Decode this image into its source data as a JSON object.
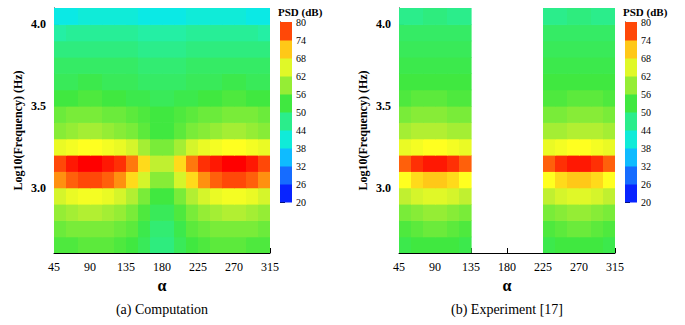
{
  "chart_data": [
    {
      "type": "heatmap",
      "title": "(a) Computation",
      "x_label": "α",
      "y_label": "Log10(Frequency) (Hz)",
      "x": [
        52.5,
        67.5,
        82.5,
        97.5,
        112.5,
        127.5,
        142.5,
        157.5,
        172.5,
        187.5,
        202.5,
        217.5,
        232.5,
        247.5,
        262.5,
        277.5,
        292.5,
        307.5
      ],
      "y": [
        2.65,
        2.75,
        2.85,
        2.95,
        3.05,
        3.15,
        3.25,
        3.35,
        3.45,
        3.55,
        3.65,
        3.75,
        3.85,
        3.95,
        4.05
      ],
      "values": [
        [
          54,
          54,
          55,
          55,
          55,
          54,
          53,
          51,
          48,
          48,
          51,
          53,
          54,
          55,
          55,
          55,
          54,
          54
        ],
        [
          56,
          57,
          57,
          57,
          57,
          56,
          55,
          52,
          49,
          49,
          52,
          55,
          56,
          57,
          57,
          57,
          57,
          56
        ],
        [
          59,
          60,
          61,
          61,
          60,
          59,
          57,
          54,
          51,
          51,
          54,
          57,
          59,
          60,
          61,
          61,
          60,
          59
        ],
        [
          64,
          66,
          67,
          67,
          66,
          64,
          61,
          57,
          53,
          53,
          57,
          61,
          64,
          66,
          67,
          67,
          66,
          64
        ],
        [
          74,
          76,
          77,
          77,
          76,
          74,
          70,
          64,
          58,
          58,
          64,
          70,
          74,
          76,
          77,
          77,
          76,
          74
        ],
        [
          77,
          79,
          80,
          80,
          79,
          78,
          75,
          70,
          62,
          62,
          70,
          75,
          78,
          79,
          80,
          80,
          79,
          77
        ],
        [
          66,
          67,
          68,
          68,
          67,
          66,
          64,
          60,
          57,
          57,
          60,
          64,
          66,
          67,
          68,
          68,
          67,
          66
        ],
        [
          58,
          59,
          60,
          60,
          59,
          58,
          57,
          55,
          53,
          53,
          55,
          57,
          58,
          59,
          60,
          60,
          59,
          58
        ],
        [
          56,
          57,
          57,
          57,
          56,
          56,
          55,
          54,
          53,
          53,
          54,
          55,
          56,
          56,
          57,
          57,
          57,
          56
        ],
        [
          53,
          53,
          54,
          54,
          53,
          53,
          52,
          52,
          51,
          51,
          52,
          52,
          53,
          53,
          54,
          54,
          53,
          53
        ],
        [
          51,
          51,
          52,
          52,
          51,
          51,
          51,
          50,
          50,
          50,
          50,
          51,
          51,
          51,
          52,
          52,
          51,
          51
        ],
        [
          50,
          50,
          50,
          50,
          50,
          50,
          50,
          49,
          49,
          49,
          49,
          50,
          50,
          50,
          50,
          50,
          50,
          50
        ],
        [
          48,
          48,
          48,
          48,
          48,
          48,
          48,
          47,
          47,
          47,
          47,
          48,
          48,
          48,
          48,
          48,
          48,
          48
        ],
        [
          45,
          46,
          46,
          46,
          46,
          46,
          46,
          45,
          45,
          45,
          45,
          46,
          46,
          46,
          46,
          46,
          46,
          45
        ],
        [
          40,
          40,
          41,
          41,
          41,
          41,
          41,
          40,
          40,
          40,
          40,
          41,
          41,
          41,
          41,
          41,
          40,
          40
        ]
      ],
      "xlim": [
        45,
        315
      ],
      "xticks": [
        45,
        90,
        135,
        180,
        225,
        270,
        315
      ],
      "ylim": [
        2.6,
        4.1
      ],
      "yticks": [
        {
          "value": 3,
          "label": "3.0"
        },
        {
          "value": 3.5,
          "label": "3.5"
        },
        {
          "value": 4,
          "label": "4.0"
        }
      ],
      "colorbar": {
        "label": "PSD (dB)",
        "range": [
          20,
          80
        ],
        "ticks": [
          20,
          26,
          32,
          38,
          44,
          50,
          56,
          62,
          68,
          74,
          80
        ]
      }
    },
    {
      "type": "heatmap",
      "title": "(b) Experiment [17]",
      "x_label": "α",
      "y_label": "Log10(Frequency) (Hz)",
      "x": [
        52.5,
        67.5,
        82.5,
        97.5,
        112.5,
        127.5,
        142.5,
        157.5,
        172.5,
        187.5,
        202.5,
        217.5,
        232.5,
        247.5,
        262.5,
        277.5,
        292.5,
        307.5
      ],
      "y": [
        2.65,
        2.75,
        2.85,
        2.95,
        3.05,
        3.15,
        3.25,
        3.35,
        3.45,
        3.55,
        3.65,
        3.75,
        3.85,
        3.95,
        4.05
      ],
      "values": [
        [
          52,
          53,
          53,
          53,
          53,
          52,
          null,
          null,
          null,
          null,
          null,
          null,
          52,
          53,
          53,
          53,
          53,
          52
        ],
        [
          54,
          55,
          56,
          56,
          55,
          54,
          null,
          null,
          null,
          null,
          null,
          null,
          54,
          55,
          56,
          56,
          55,
          54
        ],
        [
          57,
          58,
          59,
          59,
          58,
          57,
          null,
          null,
          null,
          null,
          null,
          null,
          57,
          58,
          59,
          59,
          58,
          57
        ],
        [
          62,
          64,
          65,
          65,
          64,
          62,
          null,
          null,
          null,
          null,
          null,
          null,
          62,
          64,
          65,
          65,
          64,
          62
        ],
        [
          68,
          70,
          71,
          71,
          70,
          68,
          null,
          null,
          null,
          null,
          null,
          null,
          68,
          70,
          71,
          71,
          70,
          68
        ],
        [
          76,
          78,
          79,
          79,
          78,
          76,
          null,
          null,
          null,
          null,
          null,
          null,
          76,
          78,
          79,
          79,
          78,
          76
        ],
        [
          66,
          67,
          68,
          68,
          67,
          66,
          null,
          null,
          null,
          null,
          null,
          null,
          66,
          67,
          68,
          68,
          67,
          66
        ],
        [
          60,
          61,
          61,
          61,
          60,
          60,
          null,
          null,
          null,
          null,
          null,
          null,
          60,
          60,
          61,
          61,
          61,
          60
        ],
        [
          57,
          58,
          58,
          58,
          57,
          57,
          null,
          null,
          null,
          null,
          null,
          null,
          57,
          57,
          58,
          58,
          58,
          57
        ],
        [
          54,
          55,
          55,
          55,
          54,
          54,
          null,
          null,
          null,
          null,
          null,
          null,
          54,
          54,
          55,
          55,
          55,
          54
        ],
        [
          53,
          53,
          53,
          53,
          53,
          53,
          null,
          null,
          null,
          null,
          null,
          null,
          53,
          53,
          53,
          53,
          53,
          53
        ],
        [
          52,
          52,
          52,
          52,
          52,
          52,
          null,
          null,
          null,
          null,
          null,
          null,
          52,
          52,
          52,
          52,
          52,
          52
        ],
        [
          51,
          51,
          51,
          51,
          51,
          51,
          null,
          null,
          null,
          null,
          null,
          null,
          51,
          51,
          51,
          51,
          51,
          51
        ],
        [
          50,
          50,
          50,
          50,
          50,
          50,
          null,
          null,
          null,
          null,
          null,
          null,
          50,
          50,
          50,
          50,
          50,
          50
        ],
        [
          47,
          47,
          48,
          48,
          47,
          47,
          null,
          null,
          null,
          null,
          null,
          null,
          47,
          47,
          48,
          48,
          47,
          47
        ]
      ],
      "xlim": [
        45,
        315
      ],
      "xticks": [
        45,
        90,
        135,
        180,
        225,
        270,
        315
      ],
      "ylim": [
        2.6,
        4.1
      ],
      "yticks": [
        {
          "value": 3,
          "label": "3.0"
        },
        {
          "value": 3.5,
          "label": "3.5"
        },
        {
          "value": 4,
          "label": "4.0"
        }
      ],
      "colorbar": {
        "label": "PSD (dB)",
        "range": [
          20,
          80
        ],
        "ticks": [
          20,
          26,
          32,
          38,
          44,
          50,
          56,
          62,
          68,
          74,
          80
        ]
      }
    }
  ]
}
